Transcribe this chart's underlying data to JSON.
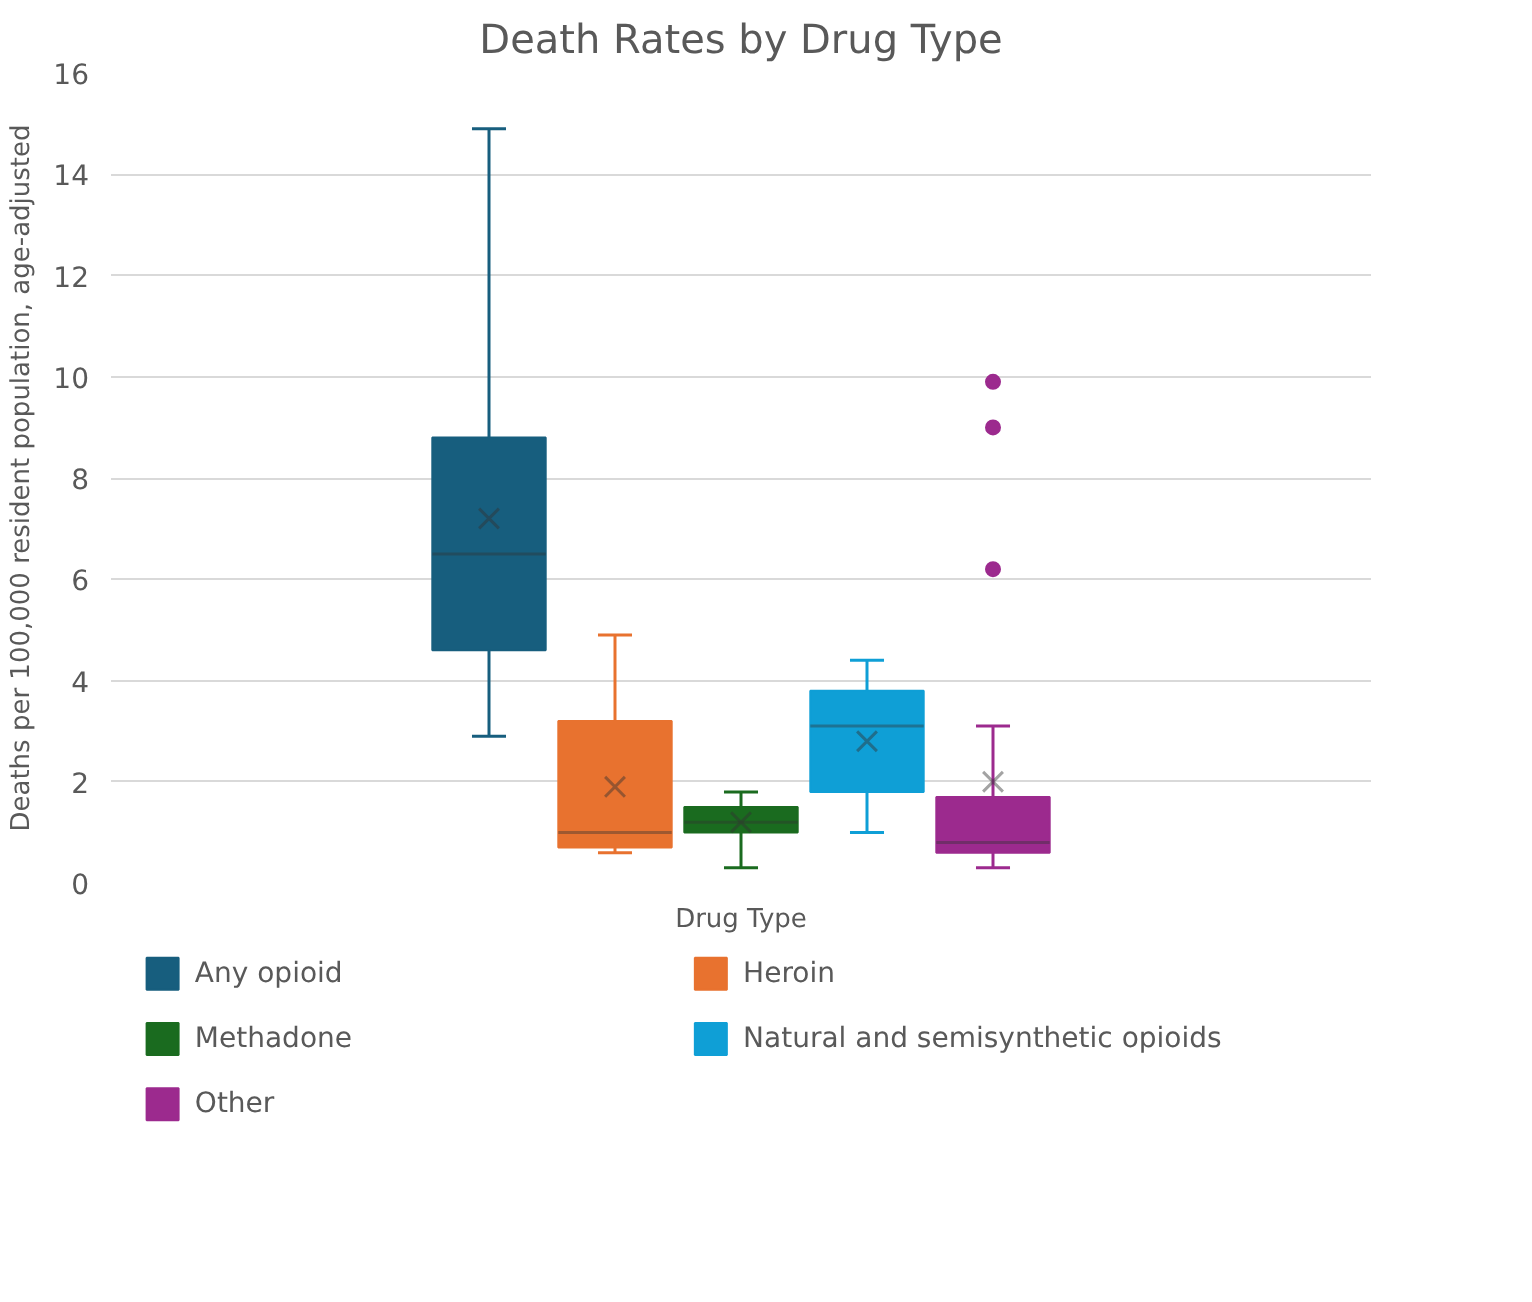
{
  "chart_data": {
    "type": "box",
    "title": "Death Rates by Drug Type",
    "xlabel": "Drug Type",
    "ylabel": "Deaths per 100,000 resident population, age-adjusted",
    "categories": [
      null
    ],
    "ylim": [
      0,
      16
    ],
    "yticks": [
      0,
      2,
      4,
      6,
      8,
      10,
      12,
      14,
      16
    ],
    "grid": "y",
    "legend": "bottom",
    "series": [
      {
        "name": "Any opioid",
        "color": "#175e7e",
        "boxes": [
          {
            "low": 2.9,
            "q1": 4.6,
            "median": 6.5,
            "q3": 8.8,
            "high": 14.9,
            "mean": 7.2
          }
        ]
      },
      {
        "name": "Heroin",
        "color": "#e8722f",
        "boxes": [
          {
            "low": 0.6,
            "q1": 0.7,
            "median": 1.0,
            "q3": 3.2,
            "high": 4.9,
            "mean": 1.9
          }
        ]
      },
      {
        "name": "Methadone",
        "color": "#1a6b1f",
        "boxes": [
          {
            "low": 0.3,
            "q1": 1.0,
            "median": 1.2,
            "q3": 1.5,
            "high": 1.8,
            "mean": 1.2
          }
        ]
      },
      {
        "name": "Natural and semisynthetic opioids",
        "color": "#0f9fd6",
        "boxes": [
          {
            "low": 1.0,
            "q1": 1.8,
            "median": 3.1,
            "q3": 3.8,
            "high": 4.4,
            "mean": 2.8
          }
        ]
      },
      {
        "name": "Other",
        "color": "#9c2a8e",
        "boxes": [
          {
            "low": 0.3,
            "q1": 0.6,
            "median": 0.8,
            "q3": 1.7,
            "high": 3.1,
            "mean": 2.0,
            "outliers": [
              9.9,
              9.0,
              6.2
            ]
          }
        ]
      }
    ]
  }
}
